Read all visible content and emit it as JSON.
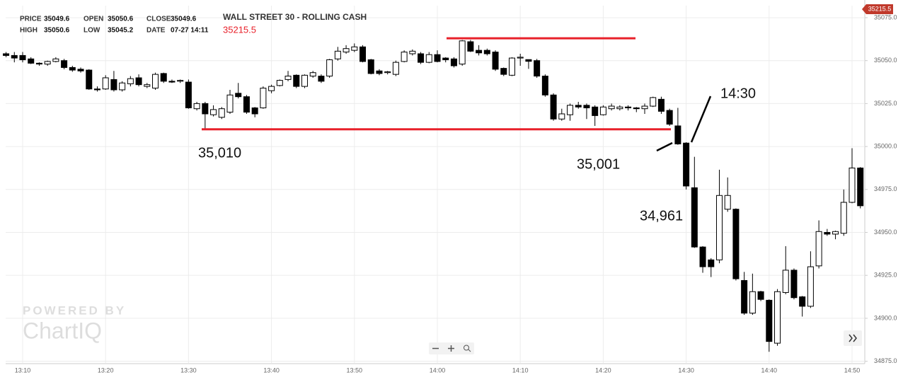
{
  "header": {
    "title": "WALL STREET 30 - ROLLING CASH",
    "last_price": 35215.5,
    "fields": [
      {
        "label": "PRICE",
        "value": 35049.6
      },
      {
        "label": "OPEN",
        "value": 35050.6
      },
      {
        "label": "CLOSE",
        "value": 35049.6
      },
      {
        "label": "HIGH",
        "value": 35050.6
      },
      {
        "label": "LOW",
        "value": 35045.2
      },
      {
        "label": "DATE",
        "value": "07-27 14:11"
      }
    ]
  },
  "watermark": [
    "POWERED BY",
    "ChartIQ"
  ],
  "chart_data": {
    "type": "candlestick",
    "categories": [
      null,
      null,
      "13:10",
      null,
      null,
      null,
      null,
      null,
      null,
      null,
      null,
      null,
      "13:20",
      null,
      null,
      null,
      null,
      null,
      null,
      null,
      null,
      null,
      "13:30",
      null,
      null,
      null,
      null,
      null,
      null,
      null,
      null,
      null,
      "13:40",
      null,
      null,
      null,
      null,
      null,
      null,
      null,
      null,
      null,
      "13:50",
      null,
      null,
      null,
      null,
      null,
      null,
      null,
      null,
      null,
      "14:00",
      null,
      null,
      null,
      null,
      null,
      null,
      null,
      null,
      null,
      "14:10",
      null,
      null,
      null,
      null,
      null,
      null,
      null,
      null,
      null,
      "14:20",
      null,
      null,
      null,
      null,
      null,
      null,
      null,
      null,
      null,
      "14:30",
      null,
      null,
      null,
      null,
      null,
      null,
      null,
      null,
      null,
      "14:40",
      null,
      null,
      null,
      null,
      null,
      null,
      null,
      null,
      null,
      "14:50",
      null
    ],
    "open": [
      35054,
      35053,
      35053,
      35051,
      35048.5,
      35048,
      35049.5,
      35050,
      35046,
      35045,
      35044.5,
      35033.5,
      35033.5,
      35039,
      35033,
      35036.5,
      35040,
      35035,
      35034,
      35042.5,
      35038,
      35038,
      35037.5,
      35022,
      35025,
      35018.5,
      35017,
      35020,
      35031,
      35029,
      35022.5,
      35022.5,
      35032.5,
      35035.5,
      35039,
      35041.5,
      35035,
      35041,
      35041,
      35041,
      35051,
      35055,
      35056,
      35058,
      35050.5,
      35044,
      35043,
      35042,
      35049.5,
      35054,
      35054,
      35049,
      35053.5,
      35051.5,
      35051,
      35048,
      35061,
      35056,
      35056,
      35055,
      35045.5,
      35041.5,
      35051.5,
      35050.6,
      35050,
      35041,
      35030,
      35016,
      35018.5,
      35024,
      35024,
      35023,
      35018.5,
      35022,
      35022,
      35023,
      35022.5,
      35022,
      35023.5,
      35027.5,
      35021,
      35012,
      35002,
      34976,
      34941.5,
      34934,
      34934,
      34963.5,
      34963.5,
      34922,
      34903,
      34915.5,
      34910.5,
      34885.5,
      34915,
      34928,
      34912.5,
      34907,
      34930.5,
      34950,
      34949,
      34949.5,
      34967.5,
      34987.5
    ],
    "high": [
      35055,
      35055,
      35055,
      35052,
      35049,
      35050,
      35052,
      35051,
      35047,
      35046,
      35045,
      35035,
      35041.5,
      35044,
      35038,
      35041,
      35042,
      35037,
      35043,
      35043,
      35039,
      35039,
      35039,
      35026,
      35026,
      35024,
      35023,
      35033,
      35037,
      35030,
      35023,
      35035,
      35036,
      35039,
      35044,
      35042,
      35042,
      35044,
      35042,
      35051,
      35058,
      35059,
      35060,
      35059,
      35051,
      35045,
      35044,
      35050,
      35056,
      35056.5,
      35055,
      35055,
      35056,
      35052,
      35052,
      35062,
      35062,
      35059,
      35057,
      35056,
      35046,
      35052,
      35054,
      35050.6,
      35051,
      35042,
      35031,
      35022,
      35025,
      35026,
      35025,
      35024,
      35024,
      35025,
      35024,
      35024,
      35023,
      35025,
      35029,
      35029,
      35022,
      35022.5,
      35002.5,
      34994,
      34942,
      34935,
      34986.5,
      34982,
      34964,
      34927,
      34926,
      34916,
      34911,
      34917,
      34942,
      34929,
      34913,
      34939,
      34957,
      34952,
      34951,
      34975,
      34999,
      34988
    ],
    "low": [
      35052,
      35049,
      35049,
      35048,
      35047,
      35047,
      35049,
      35045,
      35043.5,
      35043,
      35033,
      35032,
      35033,
      35032,
      35032,
      35035,
      35035,
      35034,
      35033,
      35037,
      35037,
      35037,
      35022,
      35021,
      35010,
      35017.5,
      35016,
      35019,
      35028,
      35019,
      35017,
      35022,
      35031,
      35035,
      35038,
      35034,
      35034,
      35040,
      35037,
      35040,
      35050,
      35054,
      35055,
      35049,
      35042,
      35041.5,
      35042,
      35041,
      35049,
      35053,
      35048,
      35048.5,
      35049,
      35049,
      35046,
      35047,
      35055,
      35053,
      35053,
      35044,
      35041,
      35041,
      35047,
      35045.2,
      35040,
      35029,
      35015,
      35015,
      35015,
      35022,
      35016,
      35012,
      35018,
      35021,
      35021,
      35021,
      35020,
      35019,
      35023,
      35019,
      35012,
      35001,
      34975,
      34941,
      34926.5,
      34924,
      34932,
      34962,
      34922,
      34902,
      34902,
      34910,
      34880.5,
      34884,
      34914,
      34911,
      34901,
      34906,
      34929,
      34948,
      34946,
      34948,
      34967,
      34964
    ],
    "close": [
      35053,
      35051.5,
      35050.5,
      35048.5,
      35048,
      35049.5,
      35051,
      35046,
      35044.5,
      35044,
      35033.5,
      35033,
      35040,
      35033,
      35037,
      35039.5,
      35036,
      35036,
      35042,
      35038,
      35037.5,
      35038.5,
      35022.5,
      35025,
      35019,
      35021.5,
      35022,
      35030,
      35029,
      35020,
      35019,
      35034,
      35035,
      35038.5,
      35041,
      35035,
      35041.5,
      35043,
      35038,
      35050.5,
      35055.5,
      35057,
      35058,
      35049.5,
      35042.5,
      35042.5,
      35043.5,
      35049,
      35055,
      35055.5,
      35049,
      35053.5,
      35049.5,
      35050.5,
      35047,
      35061.5,
      35055.5,
      35054.5,
      35054,
      35045,
      35042,
      35051.5,
      35052,
      35049.6,
      35041,
      35030,
      35016,
      35019,
      35024,
      35023,
      35022.5,
      35018,
      35023,
      35023.5,
      35023,
      35022.5,
      35022,
      35023.5,
      35028.5,
      35020.5,
      35013,
      35001.5,
      34977,
      34941.5,
      34930,
      34930,
      34971.5,
      34971.5,
      34923,
      34903,
      34915.5,
      34911,
      34886.5,
      34915.5,
      34928,
      34912,
      34907,
      34930,
      34950.5,
      34949,
      34950.5,
      34967.5,
      34987.5,
      34965.5
    ],
    "up_color": "#ffffff",
    "down_color": "#000000",
    "edge_color": "#000000",
    "ylim": [
      34874,
      35082
    ],
    "yticks": [
      {
        "value": 34875,
        "label": "34875.0"
      },
      {
        "value": 34900,
        "label": "34900.0"
      },
      {
        "value": 34925,
        "label": "34925.0"
      },
      {
        "value": 34950,
        "label": "34950.0"
      },
      {
        "value": 34975,
        "label": "34975.0"
      },
      {
        "value": 35000,
        "label": "35000.0"
      },
      {
        "value": 35025,
        "label": "35025.0"
      },
      {
        "value": 35050,
        "label": "35050.0"
      },
      {
        "value": 35075,
        "label": "35075.0"
      }
    ],
    "grid": true,
    "levels": [
      {
        "value": 35010,
        "color": "#e8202a"
      },
      {
        "value": 35063,
        "color": "#e8202a"
      }
    ],
    "annotations": [
      "35,010",
      "35,001",
      "34,961",
      "14:30"
    ]
  }
}
